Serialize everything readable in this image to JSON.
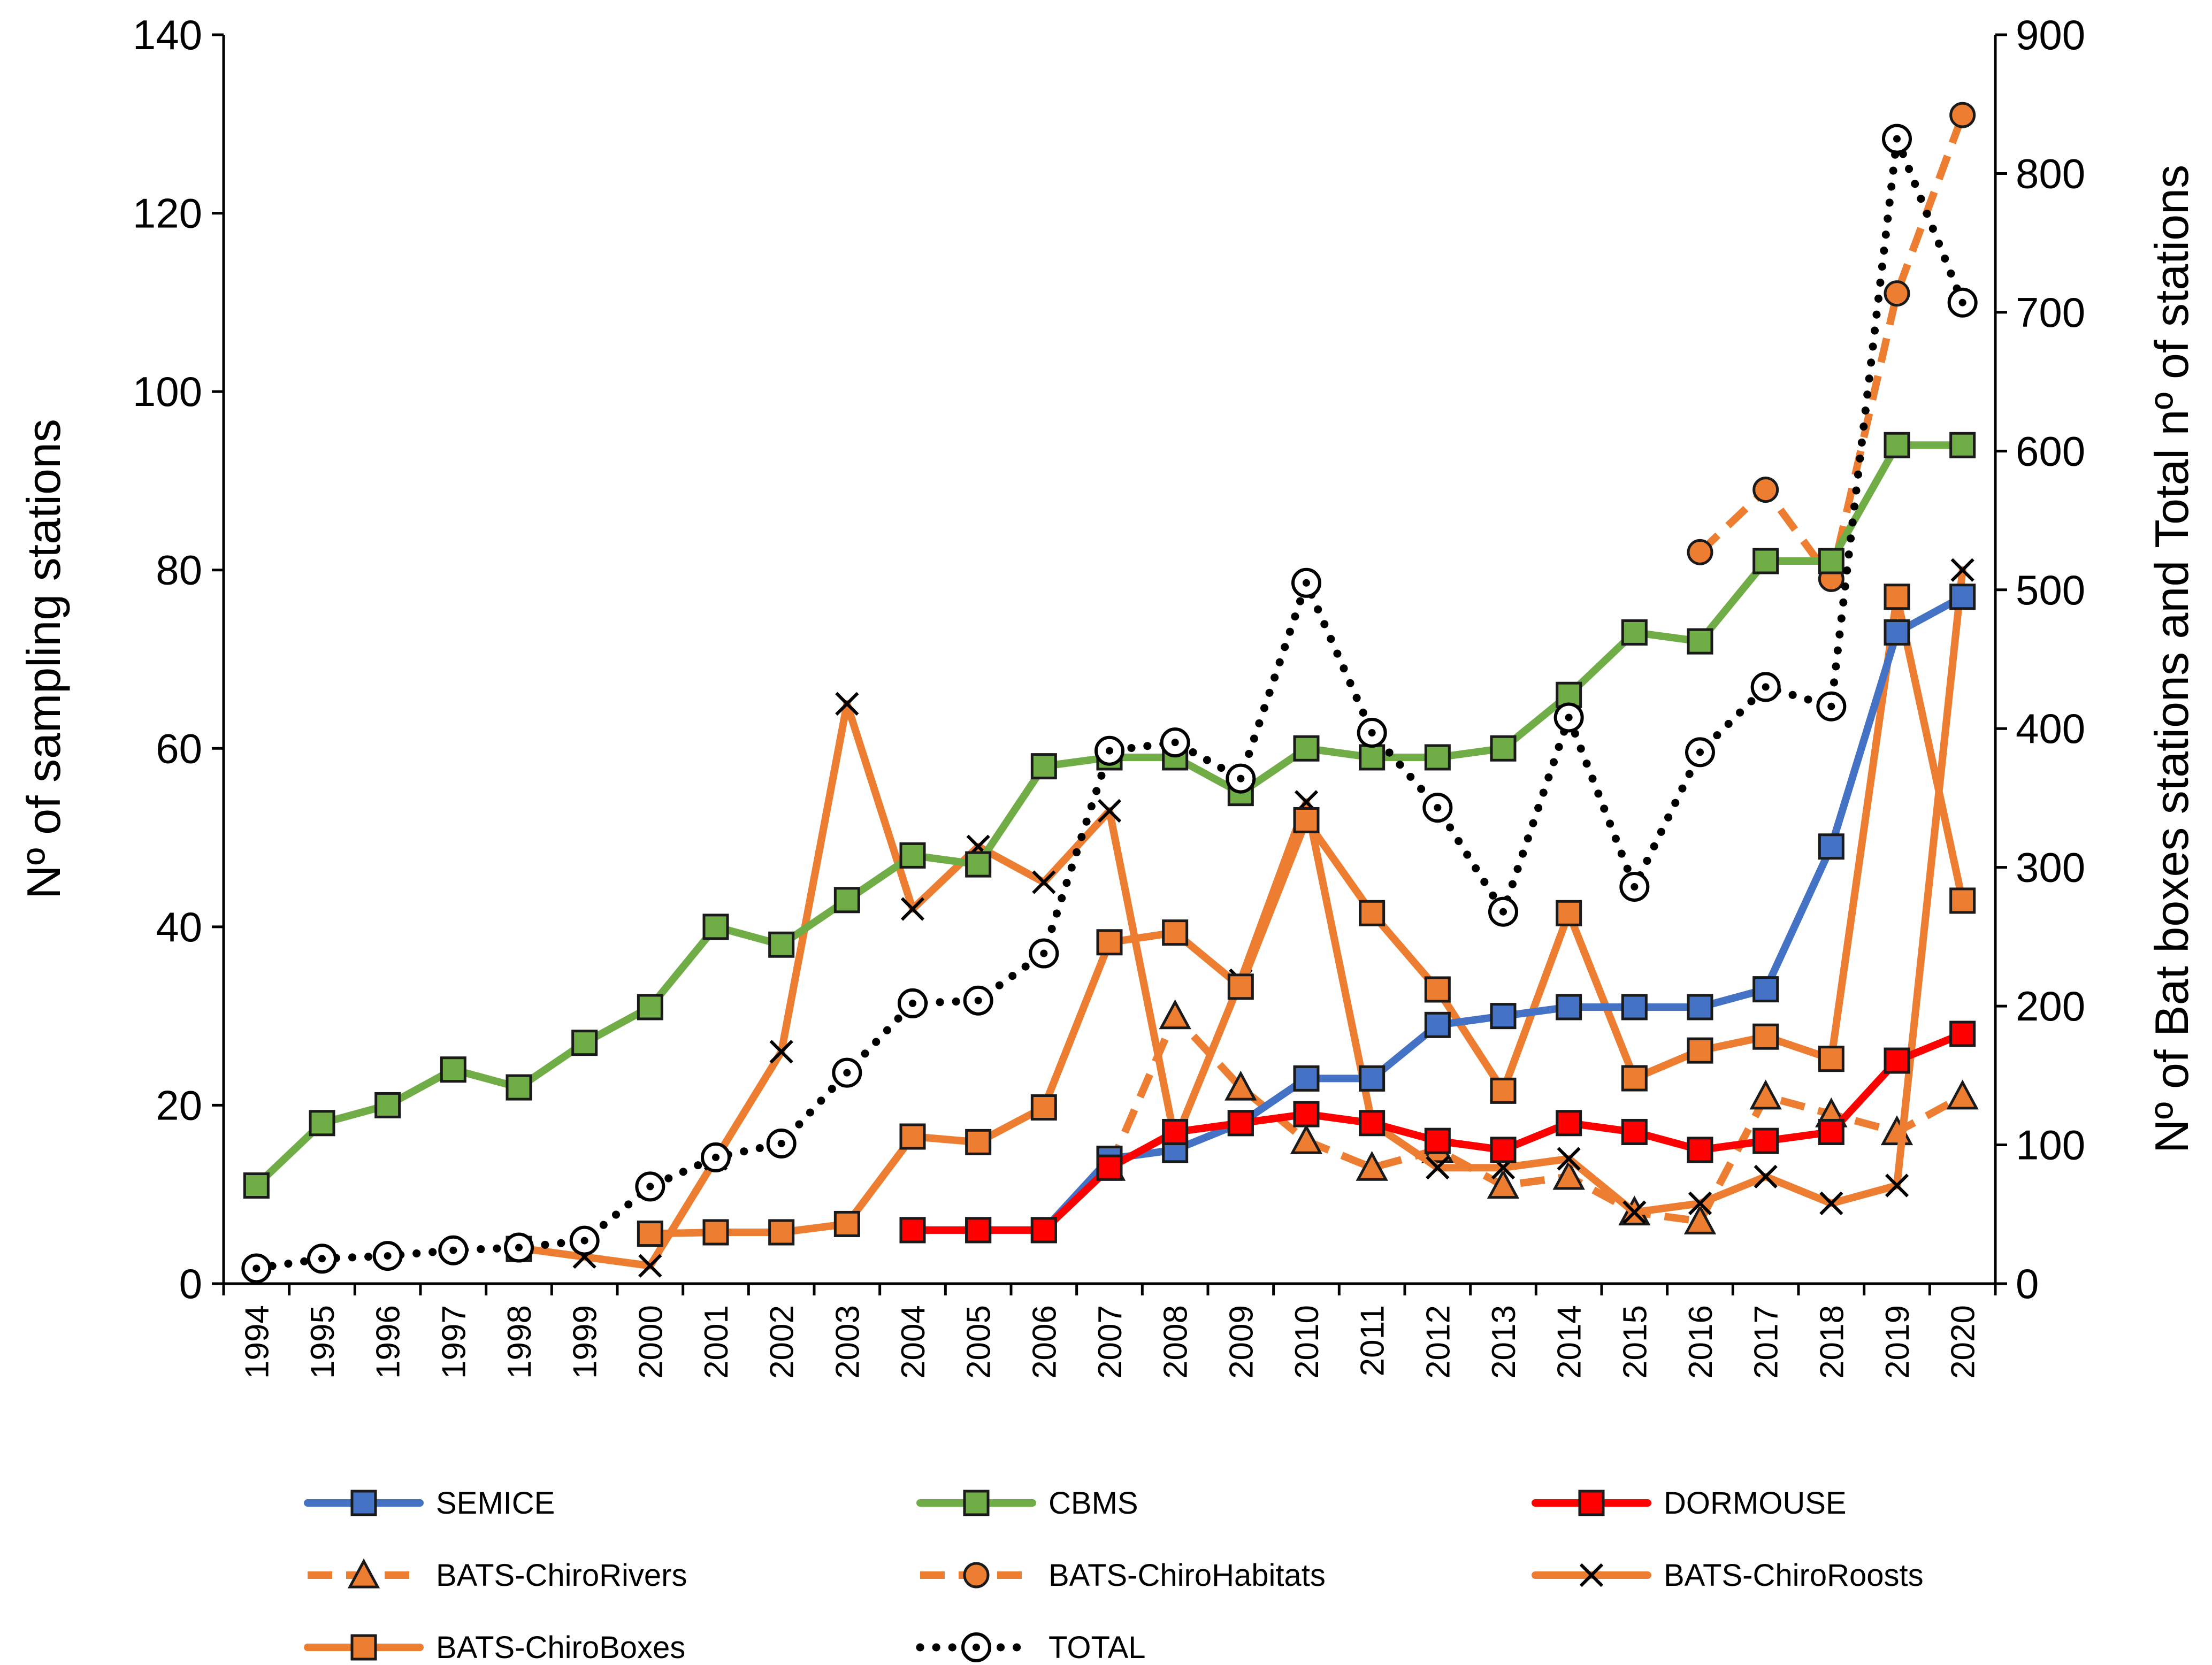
{
  "chart_data": {
    "type": "line",
    "title": "",
    "xlabel": "",
    "ylabel": "Nº of sampling stations",
    "y2label": "Nº of Bat boxes stations and Total nº of stations",
    "ylim": [
      0,
      140
    ],
    "y2lim": [
      0,
      900
    ],
    "yticks": [
      "0",
      "20",
      "40",
      "60",
      "80",
      "100",
      "120",
      "140"
    ],
    "y2ticks": [
      "0",
      "100",
      "200",
      "300",
      "400",
      "500",
      "600",
      "700",
      "800",
      "900"
    ],
    "grid": false,
    "legend_position": "bottom",
    "categories": [
      "1994",
      "1995",
      "1996",
      "1997",
      "1998",
      "1999",
      "2000",
      "2001",
      "2002",
      "2003",
      "2004",
      "2005",
      "2006",
      "2007",
      "2008",
      "2009",
      "2010",
      "2011",
      "2012",
      "2013",
      "2014",
      "2015",
      "2016",
      "2017",
      "2018",
      "2019",
      "2020"
    ],
    "series": [
      {
        "name": "SEMICE",
        "axis": "left",
        "color": "#4472C4",
        "dash": "solid",
        "marker": "square",
        "marker_fill": "#4472C4",
        "values": [
          null,
          null,
          null,
          null,
          null,
          null,
          null,
          null,
          null,
          null,
          6,
          6,
          6,
          14,
          15,
          18,
          23,
          23,
          29,
          30,
          31,
          31,
          31,
          33,
          49,
          73,
          77
        ]
      },
      {
        "name": "CBMS",
        "axis": "left",
        "color": "#70AD47",
        "dash": "solid",
        "marker": "square",
        "marker_fill": "#70AD47",
        "values": [
          11,
          18,
          20,
          24,
          22,
          27,
          31,
          40,
          38,
          43,
          48,
          47,
          58,
          59,
          59,
          55,
          60,
          59,
          59,
          60,
          66,
          73,
          72,
          81,
          81,
          94,
          94
        ]
      },
      {
        "name": "DORMOUSE",
        "axis": "left",
        "color": "#FF0000",
        "dash": "solid",
        "marker": "square",
        "marker_fill": "#FF0000",
        "values": [
          null,
          null,
          null,
          null,
          null,
          null,
          null,
          null,
          null,
          null,
          6,
          6,
          6,
          13,
          17,
          18,
          19,
          18,
          16,
          15,
          18,
          17,
          15,
          16,
          17,
          25,
          28
        ]
      },
      {
        "name": "BATS-ChiroRivers",
        "axis": "left",
        "color": "#ED7D31",
        "dash": "dashed",
        "marker": "triangle",
        "marker_fill": "#ED7D31",
        "values": [
          null,
          null,
          null,
          null,
          null,
          null,
          null,
          null,
          null,
          null,
          null,
          null,
          null,
          13,
          30,
          22,
          16,
          13,
          15,
          11,
          12,
          8,
          7,
          21,
          19,
          17,
          21
        ]
      },
      {
        "name": "BATS-ChiroHabitats",
        "axis": "left",
        "color": "#ED7D31",
        "dash": "dashed",
        "marker": "circle",
        "marker_fill": "#ED7D31",
        "values": [
          null,
          null,
          null,
          null,
          null,
          null,
          null,
          null,
          null,
          null,
          null,
          null,
          null,
          null,
          null,
          null,
          null,
          null,
          null,
          null,
          null,
          null,
          82,
          89,
          79,
          111,
          131
        ]
      },
      {
        "name": "BATS-ChiroRoosts",
        "axis": "left",
        "color": "#ED7D31",
        "dash": "solid",
        "marker": "x",
        "marker_fill": "none",
        "values": [
          null,
          null,
          null,
          null,
          4,
          3,
          2,
          14,
          26,
          65,
          42,
          49,
          45,
          53,
          16,
          34,
          54,
          18,
          13,
          13,
          14,
          8,
          9,
          12,
          9,
          11,
          80
        ]
      },
      {
        "name": "BATS-ChiroBoxes",
        "axis": "right",
        "color": "#ED7D31",
        "dash": "solid",
        "marker": "square",
        "marker_fill": "#ED7D31",
        "values": [
          null,
          null,
          null,
          null,
          25,
          null,
          36,
          37,
          37,
          43,
          106,
          102,
          127,
          246,
          253,
          214,
          334,
          267,
          212,
          139,
          267,
          148,
          168,
          178,
          162,
          495,
          276
        ]
      },
      {
        "name": "TOTAL",
        "axis": "right",
        "color": "#000000",
        "dash": "dotted",
        "marker": "open-circle",
        "marker_fill": "#ffffff",
        "values": [
          11,
          18,
          20,
          24,
          26,
          31,
          70,
          91,
          101,
          152,
          202,
          204,
          238,
          384,
          390,
          364,
          505,
          397,
          343,
          268,
          408,
          286,
          383,
          430,
          416,
          825,
          707
        ]
      }
    ]
  }
}
